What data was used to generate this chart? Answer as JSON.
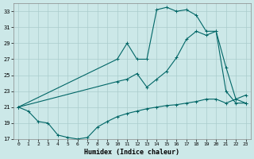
{
  "background_color": "#cce8e8",
  "grid_color": "#aacccc",
  "line_color": "#006666",
  "xlabel": "Humidex (Indice chaleur)",
  "ylim": [
    17,
    34
  ],
  "xlim": [
    -0.5,
    23.5
  ],
  "yticks": [
    17,
    19,
    21,
    23,
    25,
    27,
    29,
    31,
    33
  ],
  "xticks": [
    0,
    1,
    2,
    3,
    4,
    5,
    6,
    7,
    8,
    9,
    10,
    11,
    12,
    13,
    14,
    15,
    16,
    17,
    18,
    19,
    20,
    21,
    22,
    23
  ],
  "line1_x": [
    0,
    1,
    2,
    3,
    4,
    5,
    6,
    7,
    8,
    9,
    10,
    11,
    12,
    13,
    14,
    15,
    16,
    17,
    18,
    19,
    20,
    21,
    22,
    23
  ],
  "line1_y": [
    21.0,
    20.5,
    19.2,
    19.0,
    17.5,
    17.2,
    17.0,
    17.2,
    18.5,
    19.2,
    19.8,
    20.2,
    20.5,
    20.8,
    21.0,
    21.2,
    21.3,
    21.5,
    21.7,
    22.0,
    22.0,
    21.5,
    22.0,
    21.5
  ],
  "line2_x": [
    0,
    10,
    11,
    12,
    13,
    14,
    15,
    16,
    17,
    18,
    19,
    20,
    21,
    22,
    23
  ],
  "line2_y": [
    21.0,
    24.2,
    24.5,
    25.2,
    23.5,
    24.5,
    25.5,
    27.2,
    29.5,
    30.5,
    30.0,
    30.5,
    26.0,
    22.0,
    22.5
  ],
  "line3_x": [
    0,
    10,
    11,
    12,
    13,
    14,
    15,
    16,
    17,
    18,
    19,
    20,
    21,
    22,
    23
  ],
  "line3_y": [
    21.0,
    27.0,
    29.0,
    27.0,
    27.0,
    33.2,
    33.5,
    33.0,
    33.2,
    32.5,
    30.5,
    30.5,
    23.0,
    21.5,
    21.5
  ]
}
